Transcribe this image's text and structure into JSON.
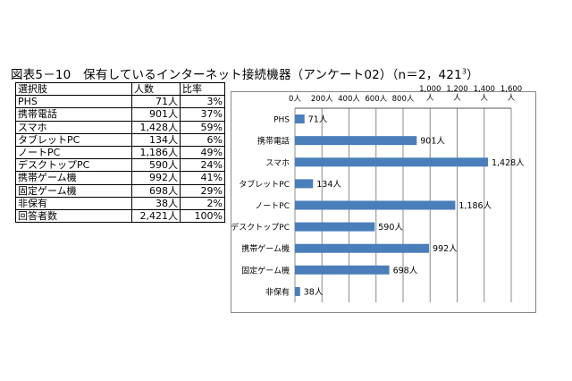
{
  "title": {
    "text": "図表5－10　保有しているインターネット接続機器（アンケート02）（n＝2，421",
    "sup": "3",
    "close": "）"
  },
  "table": {
    "headers": [
      "選択肢",
      "人数",
      "比率"
    ],
    "rows": [
      [
        "PHS",
        "71人",
        "3%"
      ],
      [
        "携帯電話",
        "901人",
        "37%"
      ],
      [
        "スマホ",
        "1,428人",
        "59%"
      ],
      [
        "タブレットPC",
        "134人",
        "6%"
      ],
      [
        "ノートPC",
        "1,186人",
        "49%"
      ],
      [
        "デスクトップPC",
        "590人",
        "24%"
      ],
      [
        "携帯ゲーム機",
        "992人",
        "41%"
      ],
      [
        "固定ゲーム機",
        "698人",
        "29%"
      ],
      [
        "非保有",
        "38人",
        "2%"
      ],
      [
        "回答者数",
        "2,421人",
        "100%"
      ]
    ]
  },
  "chart_data": {
    "type": "bar",
    "orientation": "horizontal",
    "categories": [
      "PHS",
      "携帯電話",
      "スマホ",
      "タブレットPC",
      "ノートPC",
      "デスクトップPC",
      "携帯ゲーム機",
      "固定ゲーム機",
      "非保有"
    ],
    "values": [
      71,
      901,
      1428,
      134,
      1186,
      590,
      992,
      698,
      38
    ],
    "data_labels": [
      "71人",
      "901人",
      "1,428人",
      "134人",
      "1,186人",
      "590人",
      "992人",
      "698人",
      "38人"
    ],
    "ticks": [
      0,
      200,
      400,
      600,
      800,
      1000,
      1200,
      1400,
      1600
    ],
    "tick_labels": [
      "0人",
      "200人",
      "400人",
      "600人",
      "800人",
      "1,000\n人",
      "1,200\n人",
      "1,400\n人",
      "1,600\n人"
    ],
    "xlim": [
      0,
      1600
    ],
    "bar_color": "#4a7ebb",
    "grid": true,
    "axis_position": "top"
  }
}
